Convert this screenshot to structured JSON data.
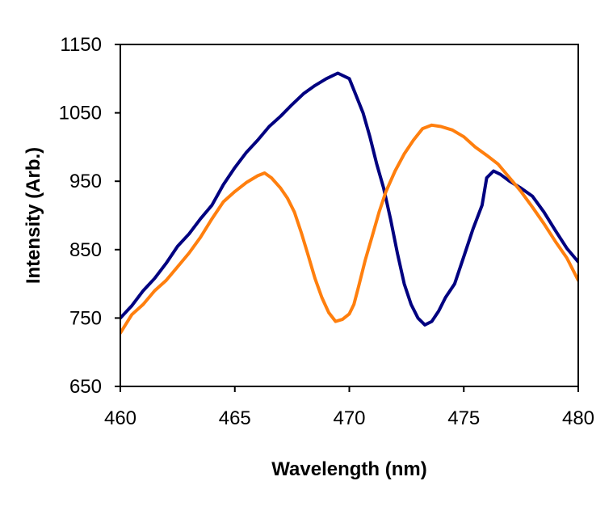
{
  "chart_data": {
    "type": "line",
    "title": "",
    "xlabel": "Wavelength (nm)",
    "ylabel": "Intensity (Arb.)",
    "xlim": [
      460,
      480
    ],
    "ylim": [
      650,
      1150
    ],
    "xticks": [
      460,
      465,
      470,
      475,
      480
    ],
    "yticks": [
      650,
      750,
      850,
      950,
      1050,
      1150
    ],
    "xtick_labels": [
      "460",
      "465",
      "470",
      "475",
      "480"
    ],
    "ytick_labels": [
      "650",
      "750",
      "850",
      "950",
      "1050",
      "1150"
    ],
    "grid": false,
    "legend": "none",
    "series": [
      {
        "name": "navy series",
        "color": "#000080",
        "points": [
          [
            460,
            750
          ],
          [
            460.5,
            768
          ],
          [
            461,
            790
          ],
          [
            461.5,
            808
          ],
          [
            462,
            830
          ],
          [
            462.5,
            855
          ],
          [
            463,
            873
          ],
          [
            463.5,
            895
          ],
          [
            464,
            915
          ],
          [
            464.5,
            945
          ],
          [
            465,
            970
          ],
          [
            465.5,
            992
          ],
          [
            466,
            1010
          ],
          [
            466.5,
            1030
          ],
          [
            467,
            1045
          ],
          [
            467.5,
            1062
          ],
          [
            468,
            1078
          ],
          [
            468.5,
            1090
          ],
          [
            469,
            1100
          ],
          [
            469.5,
            1108
          ],
          [
            470,
            1100
          ],
          [
            470.3,
            1075
          ],
          [
            470.6,
            1050
          ],
          [
            470.9,
            1015
          ],
          [
            471.2,
            975
          ],
          [
            471.5,
            940
          ],
          [
            471.8,
            895
          ],
          [
            472.1,
            845
          ],
          [
            472.4,
            800
          ],
          [
            472.7,
            770
          ],
          [
            473,
            750
          ],
          [
            473.3,
            740
          ],
          [
            473.6,
            745
          ],
          [
            473.9,
            760
          ],
          [
            474.2,
            780
          ],
          [
            474.6,
            800
          ],
          [
            475,
            840
          ],
          [
            475.4,
            880
          ],
          [
            475.8,
            915
          ],
          [
            476,
            955
          ],
          [
            476.3,
            965
          ],
          [
            476.6,
            960
          ],
          [
            477,
            950
          ],
          [
            477.5,
            940
          ],
          [
            478,
            928
          ],
          [
            478.5,
            905
          ],
          [
            479,
            878
          ],
          [
            479.5,
            852
          ],
          [
            480,
            832
          ]
        ]
      },
      {
        "name": "orange series",
        "color": "#FF7F0E",
        "points": [
          [
            460,
            728
          ],
          [
            460.5,
            755
          ],
          [
            461,
            770
          ],
          [
            461.5,
            790
          ],
          [
            462,
            805
          ],
          [
            462.5,
            825
          ],
          [
            463,
            845
          ],
          [
            463.5,
            868
          ],
          [
            464,
            895
          ],
          [
            464.5,
            920
          ],
          [
            465,
            935
          ],
          [
            465.5,
            948
          ],
          [
            466,
            958
          ],
          [
            466.3,
            962
          ],
          [
            466.6,
            955
          ],
          [
            467,
            940
          ],
          [
            467.3,
            925
          ],
          [
            467.6,
            905
          ],
          [
            467.9,
            875
          ],
          [
            468.2,
            842
          ],
          [
            468.5,
            808
          ],
          [
            468.8,
            780
          ],
          [
            469.1,
            758
          ],
          [
            469.4,
            745
          ],
          [
            469.7,
            748
          ],
          [
            470,
            756
          ],
          [
            470.2,
            770
          ],
          [
            470.4,
            795
          ],
          [
            470.7,
            835
          ],
          [
            471,
            870
          ],
          [
            471.3,
            905
          ],
          [
            471.6,
            935
          ],
          [
            472,
            965
          ],
          [
            472.4,
            990
          ],
          [
            472.8,
            1010
          ],
          [
            473.2,
            1027
          ],
          [
            473.6,
            1032
          ],
          [
            474,
            1030
          ],
          [
            474.5,
            1025
          ],
          [
            475,
            1015
          ],
          [
            475.5,
            1000
          ],
          [
            476,
            988
          ],
          [
            476.5,
            975
          ],
          [
            477,
            955
          ],
          [
            477.5,
            935
          ],
          [
            478,
            912
          ],
          [
            478.5,
            888
          ],
          [
            479,
            862
          ],
          [
            479.5,
            838
          ],
          [
            480,
            805
          ]
        ]
      }
    ]
  }
}
